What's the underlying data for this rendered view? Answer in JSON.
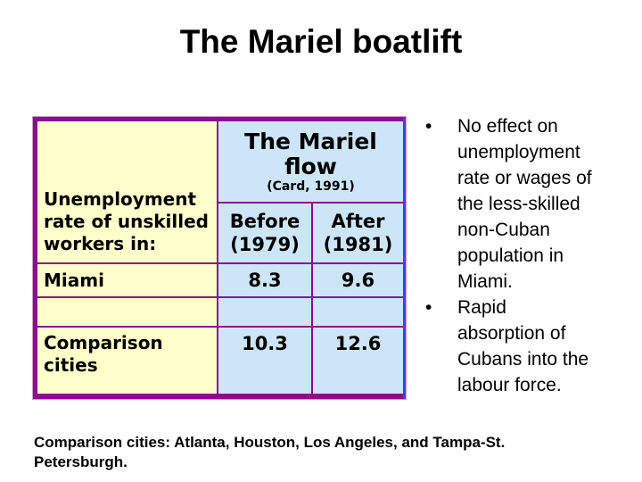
{
  "slide": {
    "title": "The Mariel boatlift",
    "bullet_char": "•",
    "table": {
      "row_header_lines": [
        "Unemployment",
        "rate of unskilled",
        "workers in:"
      ],
      "group_header": "The Mariel flow",
      "group_subheader": "(Card, 1991)",
      "col_headers": [
        [
          "Before",
          "(1979)"
        ],
        [
          "After",
          "(1981)"
        ]
      ],
      "rows": [
        {
          "label": "Miami",
          "before": "8.3",
          "after": "9.6"
        },
        {
          "label": "",
          "before": "",
          "after": ""
        },
        {
          "label": [
            "Comparison",
            "cities"
          ],
          "before": "10.3",
          "after": "12.6"
        }
      ]
    },
    "bullets": [
      [
        "No effect on",
        "unemployment",
        "rate or wages of",
        "the less-skilled",
        "non-Cuban",
        "population in",
        "Miami."
      ],
      [
        "Rapid",
        "absorption of",
        "Cubans into the",
        "labour force."
      ]
    ],
    "footnote_lines": [
      "Comparison cities: Atlanta, Houston, Los Angeles, and Tampa-St.",
      "Petersburgh."
    ],
    "colors": {
      "border-purple": "#8B0E8B",
      "border-blue": "#3946E3",
      "halo-lavender": "#C9A0C9",
      "cell-yellow": "#FFFFCC",
      "cell-blue": "#CCE6F8"
    }
  }
}
